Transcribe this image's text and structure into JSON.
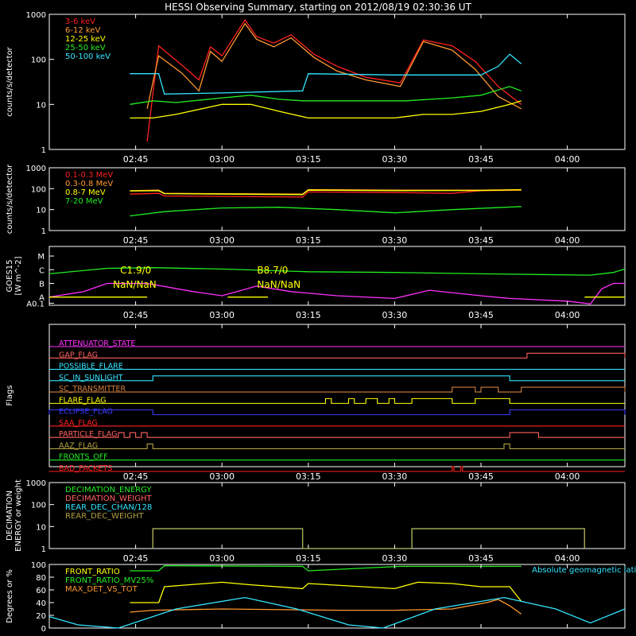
{
  "title": "HESSI Observing Summary, starting on 2012/08/19 02:30:36 UT",
  "colors": {
    "background": "#000000",
    "axes": "#ffffff",
    "red": "#ff2020",
    "orange": "#ff9930",
    "yellow": "#ffff00",
    "green": "#22ee22",
    "cyan": "#33e5ff",
    "magenta": "#ff30ff",
    "blue": "#3a3aff",
    "olive": "#b0a040",
    "brown": "#d08040",
    "salmon": "#ff6060"
  },
  "time_ticks": [
    "02:45",
    "03:00",
    "03:15",
    "03:30",
    "03:45",
    "04:00"
  ],
  "chart_data": [
    {
      "type": "line",
      "panel": "count_rates",
      "ylabel": "counts/s/detector",
      "yscale": "log",
      "ylim": [
        1,
        1000
      ],
      "yticks": [
        "1",
        "10",
        "100",
        "1000"
      ],
      "series": [
        {
          "name": "3-6 keV",
          "color_key": "red",
          "x": [
            "02:47",
            "02:49",
            "02:53",
            "02:56",
            "02:58",
            "03:00",
            "03:04",
            "03:06",
            "03:09",
            "03:12",
            "03:16",
            "03:20",
            "03:25",
            "03:31",
            "03:35",
            "03:40",
            "03:44",
            "03:48",
            "03:52"
          ],
          "y": [
            1.5,
            200,
            75,
            35,
            190,
            120,
            750,
            320,
            230,
            350,
            130,
            70,
            40,
            30,
            270,
            200,
            90,
            25,
            10
          ]
        },
        {
          "name": "6-12 keV",
          "color_key": "orange",
          "x": [
            "02:47",
            "02:49",
            "02:53",
            "02:56",
            "02:58",
            "03:00",
            "03:04",
            "03:06",
            "03:09",
            "03:12",
            "03:16",
            "03:20",
            "03:25",
            "03:31",
            "03:35",
            "03:40",
            "03:44",
            "03:48",
            "03:52"
          ],
          "y": [
            8,
            120,
            50,
            20,
            150,
            90,
            620,
            280,
            190,
            300,
            110,
            55,
            35,
            25,
            250,
            160,
            60,
            15,
            8
          ]
        },
        {
          "name": "12-25 keV",
          "color_key": "yellow",
          "x": [
            "02:44",
            "02:48",
            "02:52",
            "03:00",
            "03:05",
            "03:10",
            "03:15",
            "03:20",
            "03:30",
            "03:35",
            "03:40",
            "03:45",
            "03:50",
            "03:52"
          ],
          "y": [
            5,
            5,
            6,
            10,
            10,
            7,
            5,
            5,
            5,
            6,
            6,
            7,
            10,
            12
          ]
        },
        {
          "name": "25-50 keV",
          "color_key": "green",
          "x": [
            "02:44",
            "02:48",
            "02:52",
            "03:00",
            "03:05",
            "03:10",
            "03:14",
            "03:15",
            "03:25",
            "03:32",
            "03:40",
            "03:45",
            "03:50",
            "03:52"
          ],
          "y": [
            10,
            12,
            11,
            14,
            16,
            13,
            12,
            12,
            12,
            12,
            14,
            16,
            25,
            20
          ]
        },
        {
          "name": "50-100 keV",
          "color_key": "cyan",
          "x": [
            "02:44",
            "02:49",
            "02:50",
            "03:00",
            "03:14",
            "03:15",
            "03:30",
            "03:35",
            "03:45",
            "03:48",
            "03:50",
            "03:52"
          ],
          "y": [
            48,
            48,
            17,
            18,
            20,
            48,
            45,
            45,
            45,
            70,
            130,
            80
          ]
        }
      ]
    },
    {
      "type": "line",
      "panel": "high_energy",
      "ylabel": "counts/s/detector",
      "yscale": "log",
      "ylim": [
        1,
        1000
      ],
      "yticks": [
        "1",
        "10",
        "100",
        "1000"
      ],
      "series": [
        {
          "name": "0.1-0.3 MeV",
          "color_key": "red",
          "x": [
            "02:44",
            "02:49",
            "02:50",
            "03:14",
            "03:15",
            "03:31",
            "03:40",
            "03:45",
            "03:52"
          ],
          "y": [
            55,
            60,
            45,
            40,
            70,
            65,
            60,
            80,
            85
          ]
        },
        {
          "name": "0.3-0.8 MeV",
          "color_key": "orange",
          "x": [
            "02:44",
            "02:49",
            "02:50",
            "03:14",
            "03:15",
            "03:31",
            "03:45",
            "03:52"
          ],
          "y": [
            80,
            85,
            60,
            55,
            90,
            85,
            85,
            90
          ]
        },
        {
          "name": "0.8-7 MeV",
          "color_key": "yellow",
          "x": [
            "02:44",
            "02:49",
            "02:50",
            "03:14",
            "03:15",
            "03:31",
            "03:45",
            "03:52"
          ],
          "y": [
            78,
            80,
            58,
            52,
            85,
            80,
            82,
            88
          ]
        },
        {
          "name": "7-20 MeV",
          "color_key": "green",
          "x": [
            "02:44",
            "02:50",
            "03:00",
            "03:10",
            "03:20",
            "03:30",
            "03:40",
            "03:52"
          ],
          "y": [
            5,
            8,
            12,
            13,
            10,
            7,
            10,
            14
          ]
        }
      ]
    },
    {
      "type": "line",
      "panel": "goes",
      "ylabel": "GOES15",
      "ylabel2": "[W m^-2]",
      "yscale": "log",
      "yticks": [
        "A0.1",
        "A",
        "B",
        "C",
        "M"
      ],
      "annotations": [
        {
          "text": "C1.9/0",
          "color_key": "yellow",
          "x": "02:43"
        },
        {
          "text": "NaN/NaN",
          "color_key": "yellow",
          "x": "02:43"
        },
        {
          "text": "B8.7/0",
          "color_key": "yellow",
          "x": "03:05"
        },
        {
          "text": "NaN/NaN",
          "color_key": "yellow",
          "x": "03:05"
        }
      ],
      "series": [
        {
          "name": "",
          "color_key": "green",
          "x": [
            "02:30",
            "02:40",
            "02:48",
            "03:00",
            "03:15",
            "03:30",
            "03:45",
            "03:55",
            "04:04",
            "04:08",
            "04:10"
          ],
          "y": [
            -6.3,
            -5.9,
            -5.85,
            -5.95,
            -6.15,
            -6.2,
            -6.3,
            -6.35,
            -6.4,
            -6.2,
            -5.95
          ]
        },
        {
          "name": "",
          "color_key": "magenta",
          "x": [
            "02:30",
            "02:36",
            "02:40",
            "02:47",
            "02:55",
            "03:00",
            "03:06",
            "03:12",
            "03:20",
            "03:30",
            "03:36",
            "03:45",
            "03:50",
            "04:00",
            "04:04",
            "04:06",
            "04:08",
            "04:10"
          ],
          "y": [
            -8.0,
            -7.6,
            -7.0,
            -7.0,
            -7.6,
            -7.9,
            -7.2,
            -7.6,
            -7.9,
            -8.1,
            -7.5,
            -7.9,
            -8.1,
            -8.3,
            -8.5,
            -7.4,
            -7.0,
            -7.0
          ]
        },
        {
          "name": "",
          "color_key": "yellow",
          "x": [
            "02:30",
            "02:47"
          ],
          "y": [
            -8.0,
            -8.0
          ]
        },
        {
          "name": "",
          "color_key": "yellow",
          "x": [
            "03:01",
            "03:08"
          ],
          "y": [
            -8.0,
            -8.0
          ]
        },
        {
          "name": "",
          "color_key": "yellow",
          "x": [
            "04:03",
            "04:10"
          ],
          "y": [
            -8.0,
            -8.0
          ]
        }
      ]
    },
    {
      "type": "line",
      "panel": "flags",
      "ylabel": "Flags",
      "flags": [
        {
          "label": "ATTENUATOR_STATE",
          "color_key": "magenta",
          "segments": []
        },
        {
          "label": "GAP_FLAG",
          "color_key": "salmon",
          "segments": [
            [
              "03:53",
              "04:10"
            ]
          ]
        },
        {
          "label": "POSSIBLE_FLARE",
          "color_key": "cyan",
          "segments": []
        },
        {
          "label": "SC_IN_SUNLIGHT",
          "color_key": "cyan",
          "segments": [
            [
              "02:48",
              "03:50"
            ]
          ]
        },
        {
          "label": "SC_TRANSMITTER",
          "color_key": "brown",
          "segments": [
            [
              "03:40",
              "03:44"
            ],
            [
              "03:45",
              "03:48"
            ],
            [
              "03:52",
              "04:10"
            ]
          ]
        },
        {
          "label": "FLARE_FLAG",
          "color_key": "yellow",
          "segments": [
            [
              "03:18",
              "03:19"
            ],
            [
              "03:22",
              "03:23"
            ],
            [
              "03:25",
              "03:27"
            ],
            [
              "03:29",
              "03:30"
            ],
            [
              "03:33",
              "03:40"
            ],
            [
              "03:44",
              "03:50"
            ]
          ]
        },
        {
          "label": "ECLIPSE_FLAG",
          "color_key": "blue",
          "segments": [
            [
              "02:30",
              "02:48"
            ],
            [
              "03:50",
              "04:10"
            ]
          ]
        },
        {
          "label": "SAA_FLAG",
          "color_key": "red",
          "segments": []
        },
        {
          "label": "PARTICLE_FLAG",
          "color_key": "salmon",
          "segments": [
            [
              "02:42",
              "02:43"
            ],
            [
              "02:44",
              "02:45"
            ],
            [
              "02:46",
              "02:47"
            ],
            [
              "03:50",
              "03:55"
            ]
          ]
        },
        {
          "label": "AAZ_FLAG",
          "color_key": "olive",
          "segments": [
            [
              "02:47",
              "02:48"
            ],
            [
              "03:49",
              "03:50"
            ]
          ]
        },
        {
          "label": "FRONTS_OFF",
          "color_key": "green",
          "segments": []
        },
        {
          "label": "BAD_PACKETS",
          "color_key": "red",
          "segments": [
            [
              "03:40",
              "03:40.3"
            ],
            [
              "03:41.5",
              "03:41.8"
            ]
          ]
        }
      ]
    },
    {
      "type": "line",
      "panel": "decimation",
      "ylabel": "DECIMATION",
      "ylabel2": "ENERGY or weight",
      "yscale": "log",
      "ylim": [
        1,
        1000
      ],
      "yticks": [
        "1",
        "10",
        "100",
        "1000"
      ],
      "series": [
        {
          "name": "DECIMATION_ENERGY",
          "color_key": "green",
          "x": [],
          "y": []
        },
        {
          "name": "DECIMATION_WEIGHT",
          "color_key": "salmon",
          "x": [],
          "y": []
        },
        {
          "name": "REAR_DEC_CHAN/128",
          "color_key": "cyan",
          "x": [
            "02:48",
            "02:48",
            "03:14",
            "03:14",
            "03:33",
            "03:33",
            "04:03",
            "04:03"
          ],
          "y": [
            1,
            8,
            8,
            1,
            1,
            8,
            8,
            1
          ]
        },
        {
          "name": "REAR_DEC_WEIGHT",
          "color_key": "olive",
          "x": [
            "02:48",
            "02:48",
            "03:14",
            "03:14",
            "03:33",
            "03:33",
            "04:03",
            "04:03"
          ],
          "y": [
            1,
            8,
            8,
            1,
            1,
            8,
            8,
            1
          ]
        }
      ]
    },
    {
      "type": "line",
      "panel": "ratios",
      "ylabel": "Degrees or %",
      "ylim": [
        0,
        100
      ],
      "yticks": [
        "0",
        "20",
        "40",
        "60",
        "80",
        "100"
      ],
      "annotations": [
        {
          "text": "Absolute geomagnetic latitude",
          "color_key": "cyan",
          "x": "03:58"
        }
      ],
      "series": [
        {
          "name": "FRONT_RATIO",
          "color_key": "yellow",
          "x": [
            "02:44",
            "02:49",
            "02:50",
            "03:00",
            "03:05",
            "03:14",
            "03:15",
            "03:30",
            "03:34",
            "03:40",
            "03:45",
            "03:50",
            "03:52"
          ],
          "y": [
            40,
            40,
            65,
            72,
            68,
            62,
            70,
            62,
            72,
            70,
            65,
            65,
            42
          ]
        },
        {
          "name": "FRONT_RATIO_MV25%",
          "color_key": "green",
          "x": [
            "02:44",
            "02:49",
            "02:50",
            "03:14",
            "03:15",
            "03:31",
            "03:52"
          ],
          "y": [
            90,
            90,
            98,
            97,
            90,
            97,
            97
          ]
        },
        {
          "name": "MAX_DET_VS_TOT",
          "color_key": "orange",
          "x": [
            "02:44",
            "02:48",
            "03:00",
            "03:20",
            "03:30",
            "03:40",
            "03:46",
            "03:48",
            "03:50",
            "03:52"
          ],
          "y": [
            25,
            28,
            30,
            28,
            28,
            30,
            40,
            45,
            35,
            22
          ]
        },
        {
          "name": "Absolute geomagnetic latitude",
          "color_key": "cyan",
          "x": [
            "02:30",
            "02:35",
            "02:42",
            "02:52",
            "03:04",
            "03:13",
            "03:22",
            "03:28",
            "03:37",
            "03:49",
            "03:58",
            "04:04",
            "04:10"
          ],
          "y": [
            18,
            5,
            0,
            30,
            48,
            30,
            5,
            0,
            30,
            48,
            30,
            8,
            30
          ]
        }
      ]
    }
  ]
}
